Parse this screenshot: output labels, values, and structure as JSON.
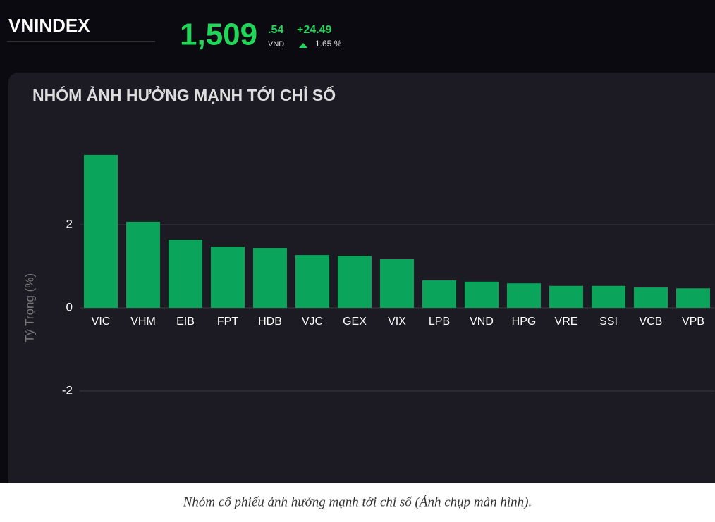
{
  "header": {
    "index_name": "VNINDEX",
    "price_main": "1,509",
    "price_decimal": ".54",
    "currency": "VND",
    "change": "+24.49",
    "change_percent": "1.65 %"
  },
  "chart_data": {
    "type": "bar",
    "title": "NHÓM ẢNH HƯỞNG MẠNH TỚI CHỈ SỐ",
    "y_label": "Tỷ Trọng (%)",
    "categories": [
      "VIC",
      "VHM",
      "EIB",
      "FPT",
      "HDB",
      "VJC",
      "GEX",
      "VIX",
      "LPB",
      "VND",
      "HPG",
      "VRE",
      "SSI",
      "VCB",
      "VPB"
    ],
    "values": [
      3.68,
      2.07,
      1.64,
      1.47,
      1.44,
      1.27,
      1.25,
      1.17,
      0.66,
      0.63,
      0.59,
      0.53,
      0.53,
      0.49,
      0.47
    ],
    "color": "#0aa55b",
    "ylim": [
      -4,
      4
    ],
    "yticks": [
      -2,
      0,
      2
    ],
    "grid": true
  },
  "caption": "Nhóm cổ phiếu ảnh hưởng mạnh tới chỉ số (Ảnh chụp màn hình)."
}
